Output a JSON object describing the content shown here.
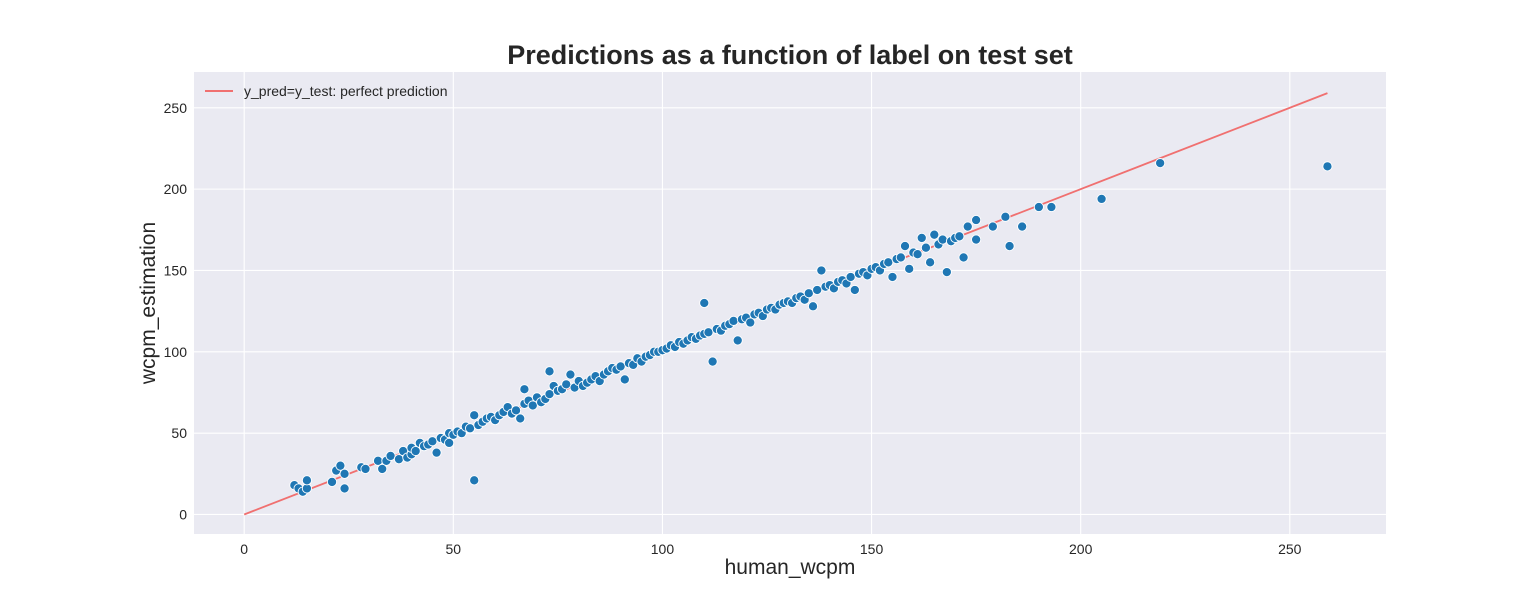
{
  "chart_data": {
    "type": "scatter",
    "title": "Predictions as a function of label on test set",
    "xlabel": "human_wcpm",
    "ylabel": "wcpm_estimation",
    "xlim": [
      -12,
      273
    ],
    "ylim": [
      -12,
      272
    ],
    "x_ticks": [
      0,
      50,
      100,
      150,
      200,
      250
    ],
    "y_ticks": [
      0,
      50,
      100,
      150,
      200,
      250
    ],
    "grid": true,
    "legend_position": "top-left",
    "colors": {
      "background": "#eaeaf2",
      "grid": "#ffffff",
      "points": "#1f77b4",
      "point_edge": "#ffffff",
      "reference_line": "#f07070"
    },
    "reference_line": {
      "name": "y_pred=y_test: perfect prediction",
      "points": [
        [
          0,
          0
        ],
        [
          259,
          259
        ]
      ]
    },
    "series": [
      {
        "points": [
          [
            12,
            18
          ],
          [
            13,
            16
          ],
          [
            14,
            14
          ],
          [
            15,
            16
          ],
          [
            15,
            21
          ],
          [
            21,
            20
          ],
          [
            22,
            27
          ],
          [
            23,
            30
          ],
          [
            24,
            16
          ],
          [
            24,
            25
          ],
          [
            28,
            29
          ],
          [
            29,
            28
          ],
          [
            32,
            33
          ],
          [
            33,
            28
          ],
          [
            34,
            33
          ],
          [
            35,
            36
          ],
          [
            37,
            34
          ],
          [
            38,
            39
          ],
          [
            39,
            35
          ],
          [
            40,
            37
          ],
          [
            40,
            41
          ],
          [
            41,
            39
          ],
          [
            42,
            44
          ],
          [
            43,
            42
          ],
          [
            44,
            43
          ],
          [
            45,
            45
          ],
          [
            46,
            38
          ],
          [
            47,
            47
          ],
          [
            48,
            46
          ],
          [
            49,
            44
          ],
          [
            49,
            50
          ],
          [
            50,
            49
          ],
          [
            51,
            51
          ],
          [
            52,
            50
          ],
          [
            53,
            54
          ],
          [
            54,
            53
          ],
          [
            55,
            61
          ],
          [
            55,
            21
          ],
          [
            56,
            55
          ],
          [
            57,
            57
          ],
          [
            58,
            59
          ],
          [
            59,
            60
          ],
          [
            60,
            58
          ],
          [
            61,
            61
          ],
          [
            62,
            63
          ],
          [
            63,
            66
          ],
          [
            64,
            62
          ],
          [
            65,
            64
          ],
          [
            66,
            59
          ],
          [
            67,
            68
          ],
          [
            67,
            77
          ],
          [
            68,
            70
          ],
          [
            69,
            67
          ],
          [
            70,
            72
          ],
          [
            71,
            69
          ],
          [
            72,
            71
          ],
          [
            73,
            74
          ],
          [
            73,
            88
          ],
          [
            74,
            79
          ],
          [
            75,
            76
          ],
          [
            76,
            77
          ],
          [
            77,
            80
          ],
          [
            78,
            86
          ],
          [
            79,
            78
          ],
          [
            80,
            82
          ],
          [
            81,
            79
          ],
          [
            82,
            81
          ],
          [
            83,
            83
          ],
          [
            84,
            85
          ],
          [
            85,
            82
          ],
          [
            86,
            86
          ],
          [
            87,
            88
          ],
          [
            88,
            90
          ],
          [
            89,
            89
          ],
          [
            90,
            91
          ],
          [
            91,
            83
          ],
          [
            92,
            93
          ],
          [
            93,
            92
          ],
          [
            94,
            96
          ],
          [
            95,
            94
          ],
          [
            96,
            97
          ],
          [
            97,
            98
          ],
          [
            98,
            100
          ],
          [
            99,
            100
          ],
          [
            100,
            101
          ],
          [
            101,
            102
          ],
          [
            102,
            104
          ],
          [
            103,
            103
          ],
          [
            104,
            106
          ],
          [
            105,
            105
          ],
          [
            106,
            107
          ],
          [
            107,
            109
          ],
          [
            108,
            108
          ],
          [
            109,
            110
          ],
          [
            110,
            111
          ],
          [
            110,
            130
          ],
          [
            111,
            112
          ],
          [
            112,
            94
          ],
          [
            113,
            114
          ],
          [
            114,
            113
          ],
          [
            115,
            116
          ],
          [
            116,
            117
          ],
          [
            117,
            119
          ],
          [
            118,
            107
          ],
          [
            119,
            120
          ],
          [
            120,
            121
          ],
          [
            121,
            118
          ],
          [
            122,
            123
          ],
          [
            123,
            124
          ],
          [
            124,
            122
          ],
          [
            125,
            126
          ],
          [
            126,
            127
          ],
          [
            127,
            126
          ],
          [
            128,
            129
          ],
          [
            129,
            130
          ],
          [
            130,
            131
          ],
          [
            131,
            130
          ],
          [
            132,
            133
          ],
          [
            133,
            134
          ],
          [
            134,
            132
          ],
          [
            135,
            136
          ],
          [
            136,
            128
          ],
          [
            137,
            138
          ],
          [
            138,
            150
          ],
          [
            139,
            140
          ],
          [
            140,
            141
          ],
          [
            141,
            139
          ],
          [
            142,
            143
          ],
          [
            143,
            144
          ],
          [
            144,
            142
          ],
          [
            145,
            146
          ],
          [
            146,
            138
          ],
          [
            147,
            148
          ],
          [
            148,
            149
          ],
          [
            149,
            147
          ],
          [
            150,
            151
          ],
          [
            151,
            152
          ],
          [
            152,
            150
          ],
          [
            153,
            154
          ],
          [
            154,
            155
          ],
          [
            155,
            146
          ],
          [
            156,
            157
          ],
          [
            157,
            158
          ],
          [
            158,
            165
          ],
          [
            159,
            151
          ],
          [
            160,
            161
          ],
          [
            161,
            160
          ],
          [
            162,
            170
          ],
          [
            163,
            164
          ],
          [
            164,
            155
          ],
          [
            165,
            172
          ],
          [
            166,
            166
          ],
          [
            167,
            169
          ],
          [
            168,
            149
          ],
          [
            169,
            168
          ],
          [
            170,
            170
          ],
          [
            171,
            171
          ],
          [
            172,
            158
          ],
          [
            173,
            177
          ],
          [
            175,
            181
          ],
          [
            175,
            169
          ],
          [
            179,
            177
          ],
          [
            182,
            183
          ],
          [
            183,
            165
          ],
          [
            186,
            177
          ],
          [
            190,
            189
          ],
          [
            193,
            189
          ],
          [
            205,
            194
          ],
          [
            219,
            216
          ],
          [
            259,
            214
          ]
        ]
      }
    ]
  }
}
